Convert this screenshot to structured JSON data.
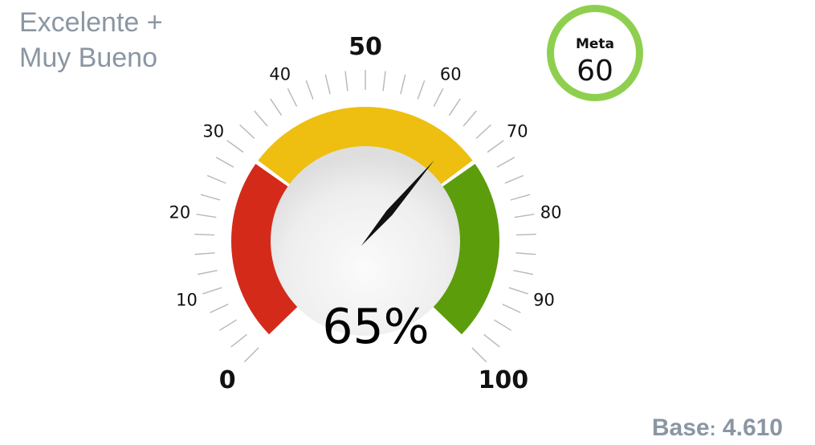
{
  "title": {
    "line1": "Excelente +",
    "line2": "Muy Bueno"
  },
  "meta": {
    "label": "Meta",
    "value": "60"
  },
  "base": {
    "label": "Base",
    "value": "4.610"
  },
  "chart_data": {
    "type": "gauge",
    "value": 65,
    "value_label": "65%",
    "range": [
      0,
      100
    ],
    "major_ticks": [
      0,
      10,
      20,
      30,
      40,
      50,
      60,
      70,
      80,
      90,
      100
    ],
    "bold_ticks": [
      0,
      50,
      100
    ],
    "bands": [
      {
        "from": 0,
        "to": 30,
        "color": "#d42a1a"
      },
      {
        "from": 30,
        "to": 70,
        "color": "#eebf10"
      },
      {
        "from": 70,
        "to": 100,
        "color": "#5c9d0c"
      }
    ],
    "target": 60
  }
}
